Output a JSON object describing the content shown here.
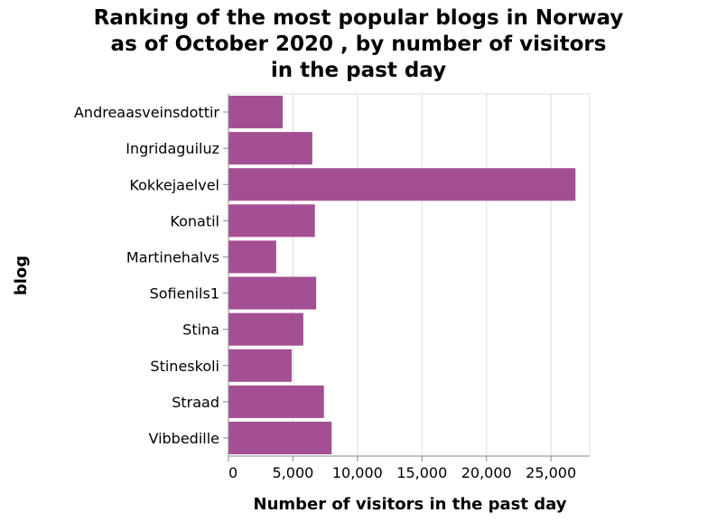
{
  "chart_data": {
    "type": "bar",
    "orientation": "horizontal",
    "title_lines": [
      "Ranking of the most popular blogs in Norway",
      "as of October 2020 , by number of visitors",
      "in the past day"
    ],
    "xlabel": "Number of visitors in the past day",
    "ylabel": "blog",
    "xlim": [
      0,
      28000
    ],
    "xticks": [
      0,
      5000,
      10000,
      15000,
      20000,
      25000
    ],
    "xtick_labels": [
      "0",
      "5,000",
      "10,000",
      "15,000",
      "20,000",
      "25,000"
    ],
    "grid": true,
    "bar_color": "#a44f93",
    "categories": [
      "Andreaasveinsdottir",
      "Ingridaguiluz",
      "Kokkejaelvel",
      "Konatil",
      "Martinehalvs",
      "Sofienils1",
      "Stina",
      "Stineskoli",
      "Straad",
      "Vibbedille"
    ],
    "values": [
      4200,
      6500,
      26900,
      6700,
      3700,
      6800,
      5800,
      4900,
      7400,
      8000
    ]
  }
}
